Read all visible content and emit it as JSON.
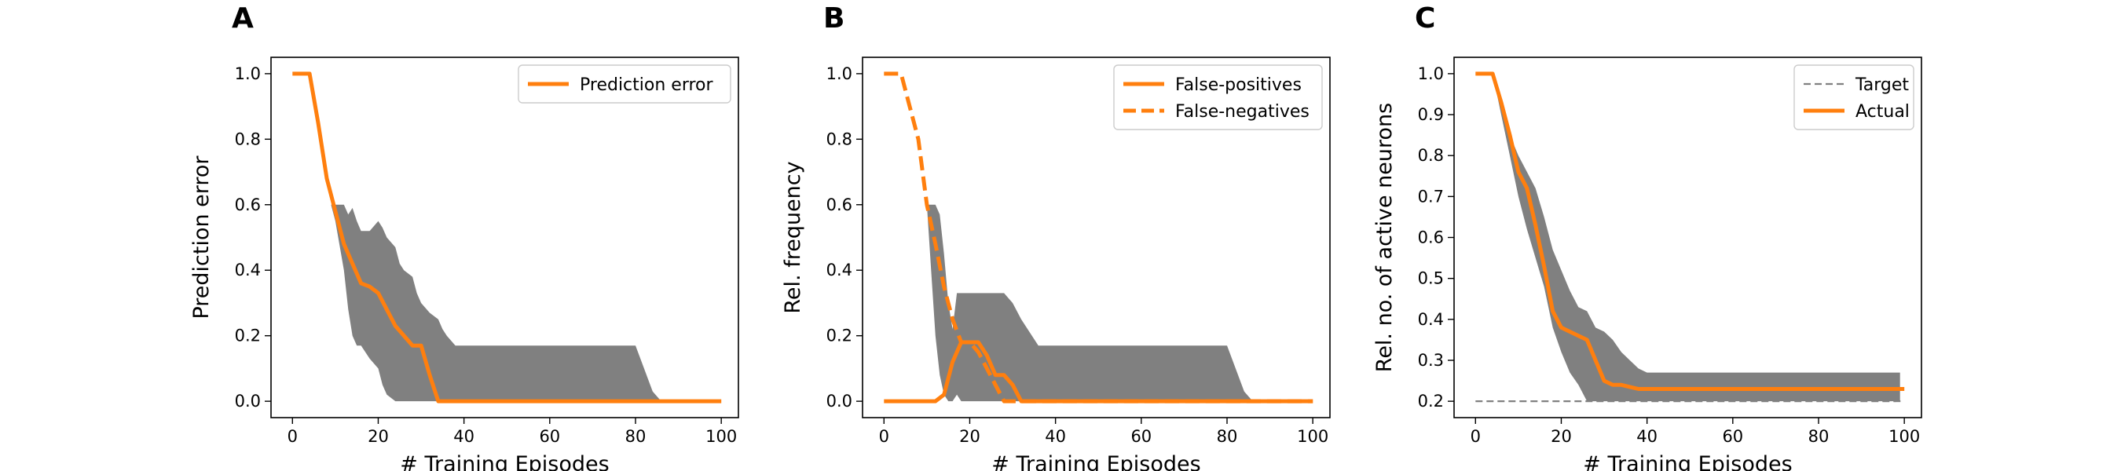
{
  "figure": {
    "colors": {
      "orange": "#ff7f0e",
      "band": "#808080",
      "target": "#808080"
    }
  },
  "chart_data": [
    {
      "type": "line",
      "panel_letter": "A",
      "xlabel": "# Training Episodes",
      "ylabel": "Prediction error",
      "xlim": [
        -5,
        104
      ],
      "ylim": [
        -0.05,
        1.05
      ],
      "xticks": [
        0,
        20,
        40,
        60,
        80,
        100
      ],
      "xtick_labels": [
        "0",
        "20",
        "40",
        "60",
        "80",
        "100"
      ],
      "yticks": [
        0.0,
        0.2,
        0.4,
        0.6,
        0.8,
        1.0
      ],
      "ytick_labels": [
        "0.0",
        "0.2",
        "0.4",
        "0.6",
        "0.8",
        "1.0"
      ],
      "grid": false,
      "legend_position": "top-right",
      "series": [
        {
          "name": "Prediction error",
          "style": "solid",
          "x": [
            0,
            2,
            4,
            6,
            8,
            10,
            12,
            14,
            16,
            18,
            20,
            22,
            24,
            26,
            28,
            30,
            32,
            34,
            36,
            40,
            60,
            80,
            100
          ],
          "y": [
            1.0,
            1.0,
            1.0,
            0.85,
            0.68,
            0.58,
            0.48,
            0.42,
            0.36,
            0.35,
            0.33,
            0.28,
            0.23,
            0.2,
            0.17,
            0.17,
            0.08,
            0.0,
            0.0,
            0.0,
            0.0,
            0.0,
            0.0
          ]
        }
      ],
      "band": {
        "x": [
          9,
          10,
          12,
          13,
          14,
          15,
          16,
          18,
          20,
          21,
          22,
          24,
          25,
          26,
          28,
          29,
          30,
          32,
          34,
          35,
          36,
          38,
          40,
          60,
          80,
          82,
          84,
          86
        ],
        "upper": [
          0.6,
          0.6,
          0.6,
          0.57,
          0.59,
          0.55,
          0.52,
          0.52,
          0.55,
          0.53,
          0.5,
          0.47,
          0.42,
          0.4,
          0.38,
          0.33,
          0.3,
          0.27,
          0.25,
          0.22,
          0.2,
          0.17,
          0.17,
          0.17,
          0.17,
          0.1,
          0.03,
          0.0
        ],
        "lower": [
          0.6,
          0.55,
          0.4,
          0.28,
          0.2,
          0.17,
          0.17,
          0.13,
          0.1,
          0.05,
          0.02,
          0.0,
          0.0,
          0.0,
          0.0,
          0.0,
          0.0,
          0.0,
          0.0,
          0.0,
          0.0,
          0.0,
          0.0,
          0.0,
          0.0,
          0.0,
          0.0,
          0.0
        ]
      }
    },
    {
      "type": "line",
      "panel_letter": "B",
      "xlabel": "# Training Episodes",
      "ylabel": "Rel. frequency",
      "xlim": [
        -5,
        104
      ],
      "ylim": [
        -0.05,
        1.05
      ],
      "xticks": [
        0,
        20,
        40,
        60,
        80,
        100
      ],
      "xtick_labels": [
        "0",
        "20",
        "40",
        "60",
        "80",
        "100"
      ],
      "yticks": [
        0.0,
        0.2,
        0.4,
        0.6,
        0.8,
        1.0
      ],
      "ytick_labels": [
        "0.0",
        "0.2",
        "0.4",
        "0.6",
        "0.8",
        "1.0"
      ],
      "grid": false,
      "legend_position": "top-right",
      "series": [
        {
          "name": "False-positives",
          "style": "solid",
          "x": [
            0,
            12,
            14,
            16,
            18,
            20,
            22,
            24,
            26,
            28,
            30,
            32,
            34,
            100
          ],
          "y": [
            0.0,
            0.0,
            0.02,
            0.12,
            0.18,
            0.18,
            0.18,
            0.14,
            0.08,
            0.08,
            0.05,
            0.0,
            0.0,
            0.0
          ]
        },
        {
          "name": "False-negatives",
          "style": "dashed",
          "x": [
            0,
            2,
            4,
            6,
            8,
            10,
            12,
            14,
            16,
            18,
            20,
            22,
            24,
            26,
            28,
            100
          ],
          "y": [
            1.0,
            1.0,
            1.0,
            0.9,
            0.8,
            0.6,
            0.48,
            0.35,
            0.25,
            0.18,
            0.18,
            0.15,
            0.1,
            0.05,
            0.0,
            0.0
          ]
        }
      ],
      "band": {
        "x": [
          10,
          11,
          12,
          13,
          14,
          15,
          16,
          17,
          18,
          20,
          22,
          24,
          26,
          28,
          30,
          32,
          36,
          40,
          60,
          80,
          82,
          84,
          86
        ],
        "upper": [
          0.6,
          0.6,
          0.6,
          0.57,
          0.45,
          0.3,
          0.22,
          0.33,
          0.33,
          0.33,
          0.33,
          0.33,
          0.33,
          0.33,
          0.3,
          0.25,
          0.17,
          0.17,
          0.17,
          0.17,
          0.1,
          0.03,
          0.0
        ],
        "lower": [
          0.6,
          0.4,
          0.2,
          0.08,
          0.02,
          0.0,
          0.0,
          0.02,
          0.0,
          0.0,
          0.0,
          0.0,
          0.0,
          0.0,
          0.0,
          0.0,
          0.0,
          0.0,
          0.0,
          0.0,
          0.0,
          0.0,
          0.0
        ]
      }
    },
    {
      "type": "line",
      "panel_letter": "C",
      "xlabel": "# Training Episodes",
      "ylabel": "Rel. no. of active neurons",
      "xlim": [
        -5,
        104
      ],
      "ylim": [
        0.16,
        1.04
      ],
      "xticks": [
        0,
        20,
        40,
        60,
        80,
        100
      ],
      "xtick_labels": [
        "0",
        "20",
        "40",
        "60",
        "80",
        "100"
      ],
      "yticks": [
        0.2,
        0.3,
        0.4,
        0.5,
        0.6,
        0.7,
        0.8,
        0.9,
        1.0
      ],
      "ytick_labels": [
        "0.2",
        "0.3",
        "0.4",
        "0.5",
        "0.6",
        "0.7",
        "0.8",
        "0.9",
        "1.0"
      ],
      "grid": false,
      "legend_position": "top-right",
      "series": [
        {
          "name": "Target",
          "style": "dashed-thin",
          "x": [
            0,
            100
          ],
          "y": [
            0.2,
            0.2
          ]
        },
        {
          "name": "Actual",
          "style": "solid",
          "x": [
            0,
            2,
            4,
            6,
            8,
            10,
            12,
            14,
            16,
            18,
            20,
            22,
            24,
            26,
            28,
            30,
            32,
            34,
            36,
            38,
            40,
            60,
            80,
            100
          ],
          "y": [
            1.0,
            1.0,
            1.0,
            0.93,
            0.85,
            0.76,
            0.72,
            0.63,
            0.53,
            0.42,
            0.38,
            0.37,
            0.36,
            0.35,
            0.3,
            0.25,
            0.24,
            0.24,
            0.235,
            0.23,
            0.23,
            0.23,
            0.23,
            0.23
          ]
        }
      ],
      "band": {
        "x": [
          4,
          6,
          8,
          10,
          12,
          14,
          16,
          18,
          20,
          22,
          24,
          26,
          28,
          30,
          32,
          34,
          36,
          38,
          40,
          60,
          80,
          99
        ],
        "upper": [
          1.0,
          0.93,
          0.85,
          0.8,
          0.76,
          0.72,
          0.65,
          0.57,
          0.52,
          0.47,
          0.43,
          0.42,
          0.38,
          0.37,
          0.35,
          0.32,
          0.3,
          0.28,
          0.27,
          0.27,
          0.27,
          0.27
        ],
        "lower": [
          1.0,
          0.9,
          0.8,
          0.7,
          0.62,
          0.55,
          0.48,
          0.38,
          0.32,
          0.27,
          0.24,
          0.2,
          0.2,
          0.2,
          0.2,
          0.2,
          0.2,
          0.2,
          0.2,
          0.2,
          0.2,
          0.2
        ]
      }
    }
  ]
}
